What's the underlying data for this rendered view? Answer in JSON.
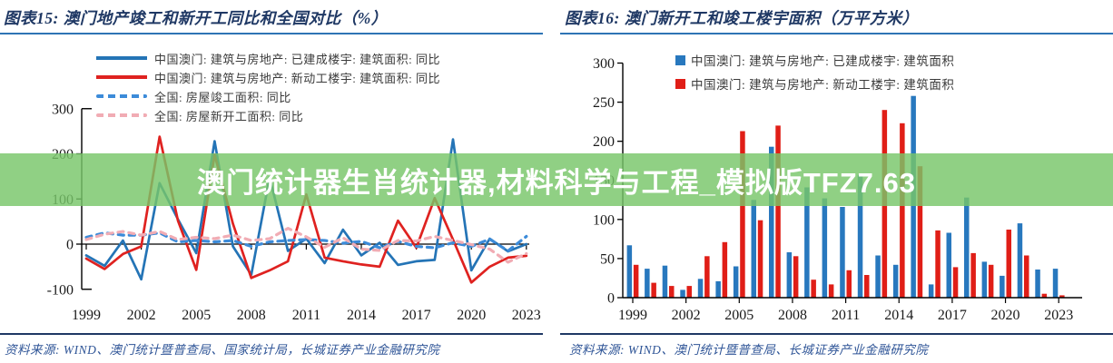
{
  "banner": {
    "text": "澳门统计器生肖统计器,材料科学与工程_模拟版TFZ7.63",
    "bg_color": "#78C669",
    "text_color": "#FFFFFF"
  },
  "panels": [
    {
      "title": "图表15:  澳门地产竣工和新开工同比和全国对比（%）",
      "source": "资料来源: WIND、澳门统计暨普查局、国家统计局，长城证券产业金融研究院"
    },
    {
      "title": "图表16:  澳门新开工和竣工楼宇面积（万平方米）",
      "source": "资料来源: WIND、澳门统计暨普查局、长城证券产业金融研究院"
    }
  ],
  "colors": {
    "macau_completed_blue": "#2474B6",
    "macau_new_red": "#DF2220",
    "national_completed_blue_dashed": "#3C8BD9",
    "national_new_pink_dashed": "#F1ACB4",
    "bar_blue": "#2878BE",
    "bar_red": "#E01E17",
    "title_navy": "#1F3864",
    "underline_blue": "#2E74B5"
  },
  "chart_data": [
    {
      "type": "line",
      "title": "澳门地产竣工和新开工同比和全国对比（%）",
      "x": [
        1999,
        2000,
        2001,
        2002,
        2003,
        2004,
        2005,
        2006,
        2007,
        2008,
        2009,
        2010,
        2011,
        2012,
        2013,
        2014,
        2015,
        2016,
        2017,
        2018,
        2019,
        2020,
        2021,
        2022,
        2023
      ],
      "x_tick_labels": [
        "1999",
        "2002",
        "2005",
        "2008",
        "2011",
        "2014",
        "2017",
        "2020",
        "2023"
      ],
      "ylim": [
        -100,
        300
      ],
      "y_ticks": [
        "300",
        "200",
        "100",
        "0",
        "-100"
      ],
      "grid": false,
      "legend_position": "top",
      "series": [
        {
          "name": "中国澳门: 建筑与房地产: 已建成楼宇: 建筑面积: 同比",
          "style": "solid",
          "color": "#2474B6",
          "values": [
            -25,
            -48,
            8,
            -78,
            135,
            55,
            -20,
            228,
            -5,
            -68,
            148,
            -15,
            12,
            -42,
            32,
            -25,
            3,
            -46,
            -38,
            -35,
            232,
            -58,
            12,
            -16,
            0
          ]
        },
        {
          "name": "中国澳门: 建筑与房地产: 新动工楼宇: 建筑面积: 同比",
          "style": "solid",
          "color": "#DF2220",
          "values": [
            -32,
            -55,
            -22,
            -5,
            238,
            52,
            -57,
            198,
            45,
            -75,
            -58,
            -38,
            110,
            -30,
            -38,
            -45,
            -50,
            52,
            -8,
            102,
            10,
            -85,
            -50,
            -30,
            -26
          ]
        },
        {
          "name": "全国: 房屋竣工面积: 同比",
          "style": "dashed",
          "color": "#3C8BD9",
          "values": [
            15,
            25,
            20,
            20,
            25,
            5,
            8,
            5,
            8,
            -5,
            5,
            8,
            10,
            8,
            2,
            6,
            -8,
            6,
            -5,
            -8,
            3,
            -5,
            11,
            -15,
            17
          ]
        },
        {
          "name": "全国: 房屋新开工面积: 同比",
          "style": "dashed",
          "color": "#F1ACB4",
          "values": [
            10,
            22,
            28,
            20,
            28,
            10,
            15,
            12,
            20,
            8,
            12,
            35,
            16,
            -7,
            14,
            -11,
            -14,
            8,
            7,
            17,
            8,
            -1,
            -11,
            -40,
            -21
          ]
        }
      ]
    },
    {
      "type": "bar",
      "title": "澳门新开工和竣工楼宇面积（万平方米）",
      "x": [
        1999,
        2000,
        2001,
        2002,
        2003,
        2004,
        2005,
        2006,
        2007,
        2008,
        2009,
        2010,
        2011,
        2012,
        2013,
        2014,
        2015,
        2016,
        2017,
        2018,
        2019,
        2020,
        2021,
        2022,
        2023
      ],
      "x_tick_labels": [
        "1999",
        "2002",
        "2005",
        "2008",
        "2011",
        "2014",
        "2017",
        "2020",
        "2023"
      ],
      "ylim": [
        0,
        300
      ],
      "y_ticks": [
        "300",
        "250",
        "200",
        "150",
        "100",
        "50",
        "0"
      ],
      "grid": false,
      "legend_position": "top",
      "series": [
        {
          "name": "中国澳门: 建筑与房地产: 已建成楼宇: 建筑面积",
          "color": "#2878BE",
          "values": [
            67,
            37,
            41,
            10,
            24,
            21,
            40,
            125,
            193,
            58,
            141,
            127,
            116,
            157,
            54,
            42,
            258,
            17,
            83,
            128,
            46,
            28,
            95,
            36,
            37
          ]
        },
        {
          "name": "中国澳门: 建筑与房地产: 新动工楼宇: 建筑面积",
          "color": "#E01E17",
          "values": [
            42,
            19,
            15,
            15,
            53,
            71,
            213,
            99,
            220,
            53,
            23,
            17,
            35,
            29,
            240,
            223,
            168,
            86,
            39,
            57,
            42,
            87,
            54,
            5,
            3
          ]
        }
      ]
    }
  ]
}
